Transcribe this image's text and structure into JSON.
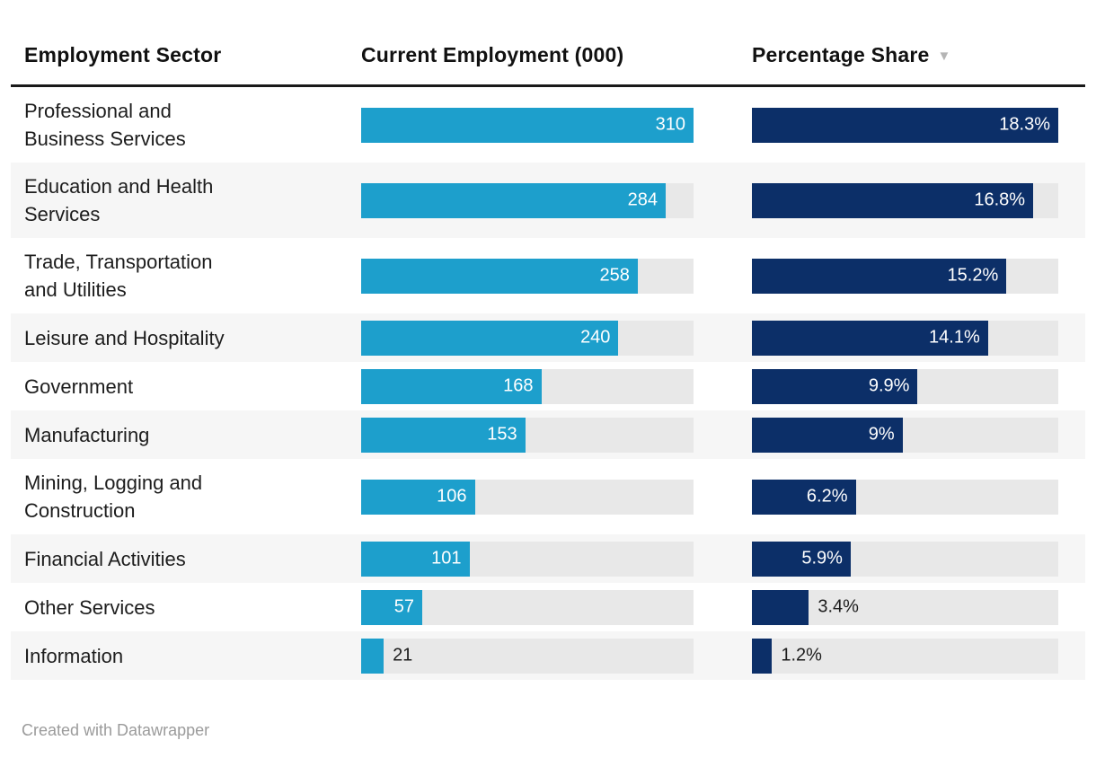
{
  "header": {
    "columns": [
      {
        "label": "Employment Sector",
        "sorted": false
      },
      {
        "label": "Current Employment (000)",
        "sorted": false
      },
      {
        "label": "Percentage Share",
        "sorted": true,
        "sort_icon": "▼"
      }
    ]
  },
  "chart_data": {
    "type": "table",
    "title": "",
    "columns": [
      "Employment Sector",
      "Current Employment (000)",
      "Percentage Share"
    ],
    "employment_axis_max": 310,
    "share_axis_max": 18.3,
    "sort": {
      "column": "Percentage Share",
      "direction": "descending"
    },
    "rows": [
      {
        "sector": "Professional and Business Services",
        "employment": 310,
        "employment_label": "310",
        "share": 18.3,
        "share_label": "18.3%"
      },
      {
        "sector": "Education and Health Services",
        "employment": 284,
        "employment_label": "284",
        "share": 16.8,
        "share_label": "16.8%"
      },
      {
        "sector": "Trade, Transportation and Utilities",
        "employment": 258,
        "employment_label": "258",
        "share": 15.2,
        "share_label": "15.2%"
      },
      {
        "sector": "Leisure and Hospitality",
        "employment": 240,
        "employment_label": "240",
        "share": 14.1,
        "share_label": "14.1%"
      },
      {
        "sector": "Government",
        "employment": 168,
        "employment_label": "168",
        "share": 9.9,
        "share_label": "9.9%"
      },
      {
        "sector": "Manufacturing",
        "employment": 153,
        "employment_label": "153",
        "share": 9,
        "share_label": "9%"
      },
      {
        "sector": "Mining, Logging and Construction",
        "employment": 106,
        "employment_label": "106",
        "share": 6.2,
        "share_label": "6.2%"
      },
      {
        "sector": "Financial Activities",
        "employment": 101,
        "employment_label": "101",
        "share": 5.9,
        "share_label": "5.9%"
      },
      {
        "sector": "Other Services",
        "employment": 57,
        "employment_label": "57",
        "share": 3.4,
        "share_label": "3.4%"
      },
      {
        "sector": "Information",
        "employment": 21,
        "employment_label": "21",
        "share": 1.2,
        "share_label": "1.2%"
      }
    ]
  },
  "footer": {
    "credit": "Created with Datawrapper"
  },
  "colors": {
    "employment_bar": "#1D9FCC",
    "share_bar": "#0C2F68",
    "bar_track": "#E8E8E8",
    "alt_row_background": "#F6F6F6",
    "text": "#1D1D1D",
    "header_rule": "#191919",
    "sort_arrow": "#B5B5B5",
    "credit_text": "#9B9B9B"
  }
}
